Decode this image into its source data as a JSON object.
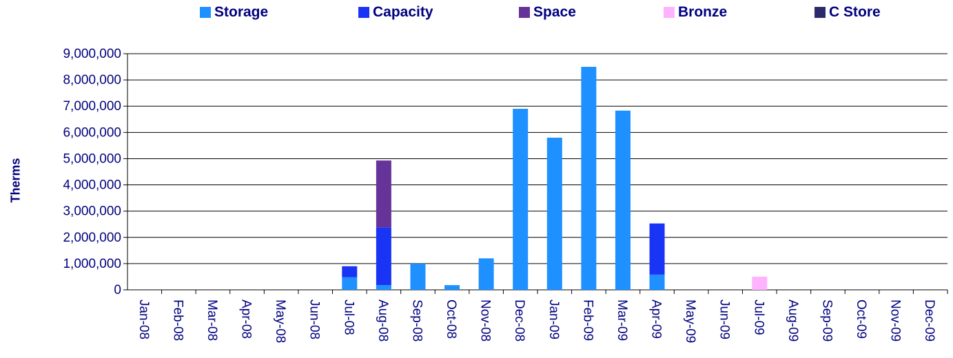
{
  "chart_data": {
    "type": "bar",
    "stacked": true,
    "title": "",
    "xlabel": "",
    "ylabel": "Therms",
    "ylim": [
      0,
      9000000
    ],
    "yticks": [
      0,
      1000000,
      2000000,
      3000000,
      4000000,
      5000000,
      6000000,
      7000000,
      8000000,
      9000000
    ],
    "ytick_labels": [
      "0",
      "1,000,000",
      "2,000,000",
      "3,000,000",
      "4,000,000",
      "5,000,000",
      "6,000,000",
      "7,000,000",
      "8,000,000",
      "9,000,000"
    ],
    "grid": true,
    "legend_position": "top",
    "categories": [
      "Jan-08",
      "Feb-08",
      "Mar-08",
      "Apr-08",
      "May-08",
      "Jun-08",
      "Jul-08",
      "Aug-08",
      "Sep-08",
      "Oct-08",
      "Nov-08",
      "Dec-08",
      "Jan-09",
      "Feb-09",
      "Mar-09",
      "Apr-09",
      "May-09",
      "Jun-09",
      "Jul-09",
      "Aug-09",
      "Sep-09",
      "Oct-09",
      "Nov-09",
      "Dec-09"
    ],
    "series": [
      {
        "name": "Storage",
        "color": "#1E90FF",
        "values": [
          0,
          0,
          0,
          0,
          0,
          0,
          480000,
          180000,
          1000000,
          180000,
          1200000,
          6900000,
          5800000,
          8500000,
          6830000,
          580000,
          0,
          0,
          0,
          0,
          0,
          0,
          0,
          0
        ]
      },
      {
        "name": "Capacity",
        "color": "#1A34F5",
        "values": [
          0,
          0,
          0,
          0,
          0,
          0,
          420000,
          2200000,
          0,
          0,
          0,
          0,
          0,
          0,
          0,
          1950000,
          0,
          0,
          0,
          0,
          0,
          0,
          0,
          0
        ]
      },
      {
        "name": "Space",
        "color": "#663399",
        "values": [
          0,
          0,
          0,
          0,
          0,
          0,
          0,
          2550000,
          0,
          0,
          0,
          0,
          0,
          0,
          0,
          0,
          0,
          0,
          0,
          0,
          0,
          0,
          0,
          0
        ]
      },
      {
        "name": "Bronze",
        "color": "#FFB3FF",
        "values": [
          0,
          0,
          0,
          0,
          0,
          0,
          0,
          0,
          0,
          0,
          0,
          0,
          0,
          0,
          0,
          0,
          0,
          0,
          500000,
          0,
          0,
          0,
          0,
          0
        ]
      },
      {
        "name": "C Store",
        "color": "#2B2B6B",
        "values": [
          0,
          0,
          0,
          0,
          0,
          0,
          0,
          0,
          0,
          0,
          0,
          0,
          0,
          0,
          0,
          0,
          0,
          0,
          0,
          0,
          0,
          0,
          0,
          0
        ]
      }
    ]
  }
}
